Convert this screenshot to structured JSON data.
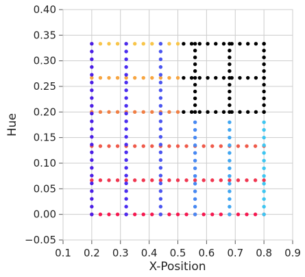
{
  "chart_data": {
    "type": "scatter",
    "title": "",
    "xlabel": "X-Position",
    "ylabel": "Hue",
    "xlim": [
      0.1,
      0.9
    ],
    "ylim": [
      -0.05,
      0.4
    ],
    "xticks": [
      "0.1",
      "0.2",
      "0.3",
      "0.4",
      "0.5",
      "0.6",
      "0.7",
      "0.8",
      "0.9"
    ],
    "yticks": [
      "−0.05",
      "0.00",
      "0.05",
      "0.10",
      "0.15",
      "0.20",
      "0.25",
      "0.30",
      "0.35",
      "0.40"
    ],
    "grid": true,
    "legend": "none",
    "point_sets": [
      {
        "name": "row-0.00",
        "color": "#f5174f",
        "orientation": "horizontal",
        "y": 0.0,
        "x_from": 0.2,
        "x_to": 0.8,
        "count": 21
      },
      {
        "name": "row-0.067",
        "color": "#f0354f",
        "orientation": "horizontal",
        "y": 0.0667,
        "x_from": 0.2,
        "x_to": 0.8,
        "count": 21
      },
      {
        "name": "row-0.133",
        "color": "#ef5b4b",
        "orientation": "horizontal",
        "y": 0.1333,
        "x_from": 0.2,
        "x_to": 0.8,
        "count": 21
      },
      {
        "name": "row-0.20",
        "color": "#f07f45",
        "orientation": "horizontal",
        "y": 0.2,
        "x_from": 0.2,
        "x_to": 0.5,
        "count": 11
      },
      {
        "name": "row-0.267",
        "color": "#f7a541",
        "orientation": "horizontal",
        "y": 0.2667,
        "x_from": 0.2,
        "x_to": 0.5,
        "count": 11
      },
      {
        "name": "row-0.333",
        "color": "#f8c54a",
        "orientation": "horizontal",
        "y": 0.3333,
        "x_from": 0.2,
        "x_to": 0.5,
        "count": 11
      },
      {
        "name": "black-rows",
        "color": "#000000",
        "orientation": "horizontal",
        "y_values": [
          0.2,
          0.2667,
          0.3333
        ],
        "x_from": 0.52,
        "x_to": 0.8,
        "count": 11
      },
      {
        "name": "black-cols",
        "color": "#000000",
        "orientation": "vertical",
        "x_values": [
          0.56,
          0.68,
          0.8
        ],
        "y_from": 0.2,
        "y_to": 0.3333,
        "count": 11
      },
      {
        "name": "col-0.20",
        "color": "#4b1ee6",
        "orientation": "vertical",
        "x": 0.2,
        "y_from": 0.0,
        "y_to": 0.3333,
        "count": 23
      },
      {
        "name": "col-0.32",
        "color": "#4b2df0",
        "orientation": "vertical",
        "x": 0.32,
        "y_from": 0.0,
        "y_to": 0.3333,
        "count": 23
      },
      {
        "name": "col-0.44",
        "color": "#4a55f0",
        "orientation": "vertical",
        "x": 0.44,
        "y_from": 0.0,
        "y_to": 0.3333,
        "count": 23
      },
      {
        "name": "col-0.56",
        "color": "#4788f2",
        "orientation": "vertical",
        "x": 0.56,
        "y_from": 0.0,
        "y_to": 0.18,
        "count": 13
      },
      {
        "name": "col-0.68",
        "color": "#41a6f1",
        "orientation": "vertical",
        "x": 0.68,
        "y_from": 0.0,
        "y_to": 0.18,
        "count": 13
      },
      {
        "name": "col-0.80",
        "color": "#3fc6f1",
        "orientation": "vertical",
        "x": 0.8,
        "y_from": 0.0,
        "y_to": 0.18,
        "count": 13
      }
    ]
  }
}
